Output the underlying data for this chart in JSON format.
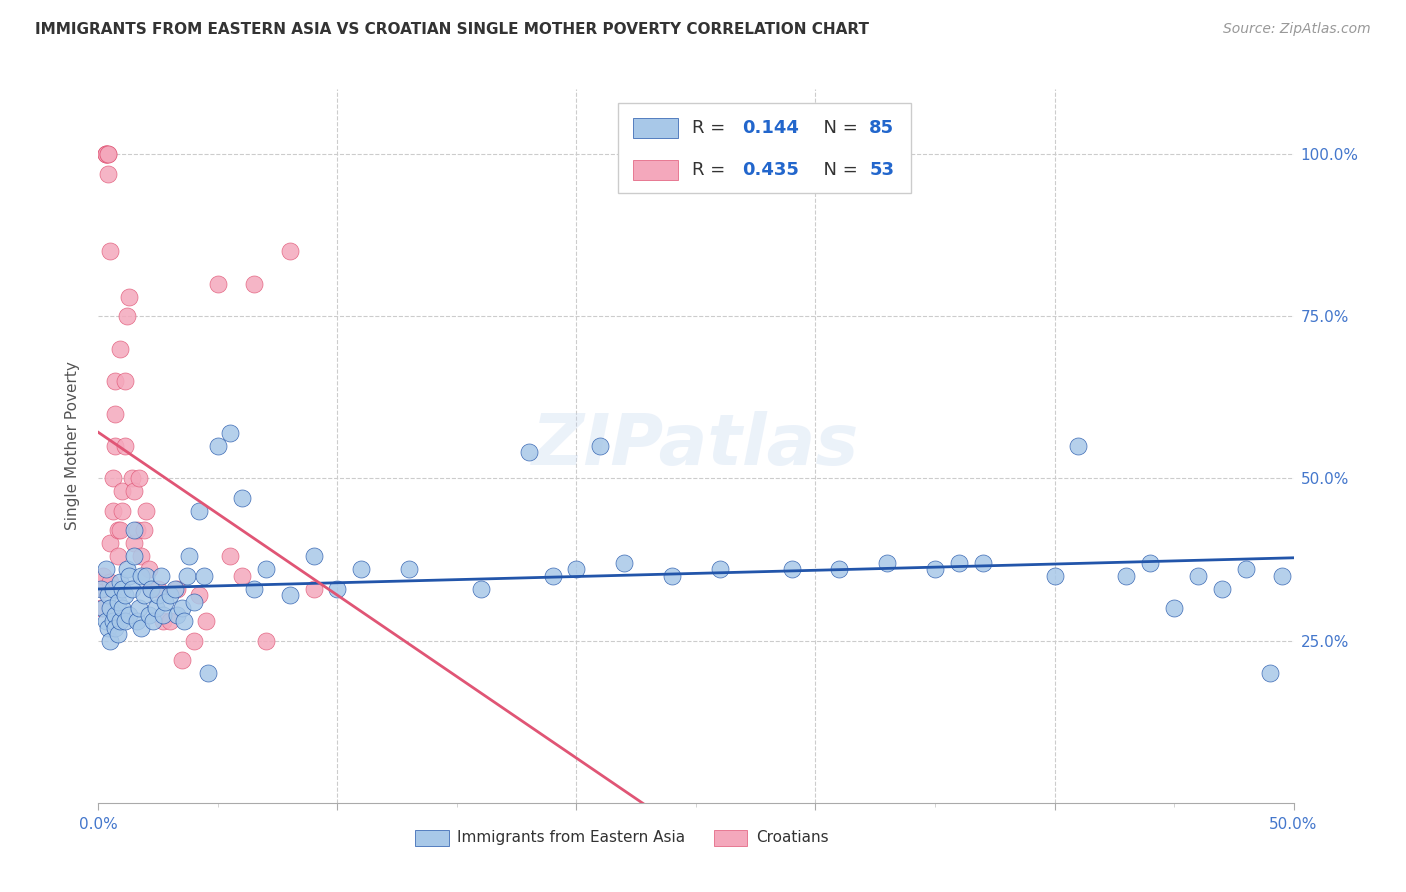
{
  "title": "IMMIGRANTS FROM EASTERN ASIA VS CROATIAN SINGLE MOTHER POVERTY CORRELATION CHART",
  "source": "Source: ZipAtlas.com",
  "ylabel": "Single Mother Poverty",
  "x_tick_labels": [
    "0.0%",
    "",
    "",
    "",
    "",
    "",
    "",
    "",
    "",
    "50.0%"
  ],
  "x_tick_values": [
    0.0,
    0.05,
    0.1,
    0.15,
    0.2,
    0.25,
    0.3,
    0.35,
    0.4,
    0.5
  ],
  "y_tick_labels": [
    "25.0%",
    "50.0%",
    "75.0%",
    "100.0%"
  ],
  "y_tick_values": [
    0.25,
    0.5,
    0.75,
    1.0
  ],
  "xlim": [
    0.0,
    0.5
  ],
  "ylim": [
    0.0,
    1.1
  ],
  "legend_label_blue": "Immigrants from Eastern Asia",
  "legend_label_pink": "Croatians",
  "R_blue": 0.144,
  "N_blue": 85,
  "R_pink": 0.435,
  "N_pink": 53,
  "blue_color": "#a8c8e8",
  "pink_color": "#f4a8bc",
  "blue_line_color": "#2255aa",
  "pink_line_color": "#e05575",
  "watermark": "ZIPatlas",
  "blue_x": [
    0.001,
    0.002,
    0.003,
    0.003,
    0.004,
    0.004,
    0.005,
    0.005,
    0.006,
    0.006,
    0.007,
    0.007,
    0.008,
    0.008,
    0.009,
    0.009,
    0.01,
    0.01,
    0.011,
    0.011,
    0.012,
    0.013,
    0.013,
    0.014,
    0.015,
    0.015,
    0.016,
    0.017,
    0.018,
    0.018,
    0.019,
    0.02,
    0.021,
    0.022,
    0.023,
    0.024,
    0.025,
    0.026,
    0.027,
    0.028,
    0.03,
    0.032,
    0.033,
    0.035,
    0.036,
    0.037,
    0.038,
    0.04,
    0.042,
    0.044,
    0.046,
    0.05,
    0.055,
    0.06,
    0.065,
    0.07,
    0.08,
    0.09,
    0.1,
    0.11,
    0.13,
    0.16,
    0.19,
    0.21,
    0.24,
    0.26,
    0.29,
    0.31,
    0.35,
    0.37,
    0.4,
    0.41,
    0.43,
    0.44,
    0.45,
    0.46,
    0.47,
    0.48,
    0.49,
    0.495,
    0.18,
    0.2,
    0.22,
    0.33,
    0.36
  ],
  "blue_y": [
    0.33,
    0.3,
    0.28,
    0.36,
    0.27,
    0.32,
    0.3,
    0.25,
    0.28,
    0.33,
    0.29,
    0.27,
    0.31,
    0.26,
    0.34,
    0.28,
    0.3,
    0.33,
    0.28,
    0.32,
    0.36,
    0.29,
    0.35,
    0.33,
    0.42,
    0.38,
    0.28,
    0.3,
    0.27,
    0.35,
    0.32,
    0.35,
    0.29,
    0.33,
    0.28,
    0.3,
    0.32,
    0.35,
    0.29,
    0.31,
    0.32,
    0.33,
    0.29,
    0.3,
    0.28,
    0.35,
    0.38,
    0.31,
    0.45,
    0.35,
    0.2,
    0.55,
    0.57,
    0.47,
    0.33,
    0.36,
    0.32,
    0.38,
    0.33,
    0.36,
    0.36,
    0.33,
    0.35,
    0.55,
    0.35,
    0.36,
    0.36,
    0.36,
    0.36,
    0.37,
    0.35,
    0.55,
    0.35,
    0.37,
    0.3,
    0.35,
    0.33,
    0.36,
    0.2,
    0.35,
    0.54,
    0.36,
    0.37,
    0.37,
    0.37
  ],
  "pink_x": [
    0.001,
    0.001,
    0.002,
    0.002,
    0.003,
    0.003,
    0.003,
    0.004,
    0.004,
    0.004,
    0.005,
    0.005,
    0.005,
    0.006,
    0.006,
    0.007,
    0.007,
    0.007,
    0.008,
    0.008,
    0.009,
    0.009,
    0.01,
    0.01,
    0.011,
    0.011,
    0.012,
    0.013,
    0.014,
    0.015,
    0.015,
    0.016,
    0.017,
    0.018,
    0.019,
    0.02,
    0.021,
    0.022,
    0.025,
    0.027,
    0.03,
    0.033,
    0.035,
    0.04,
    0.042,
    0.045,
    0.05,
    0.055,
    0.06,
    0.065,
    0.07,
    0.08,
    0.09
  ],
  "pink_y": [
    0.34,
    0.3,
    0.33,
    0.35,
    1.0,
    1.0,
    1.0,
    1.0,
    1.0,
    0.97,
    0.34,
    0.4,
    0.85,
    0.45,
    0.5,
    0.55,
    0.6,
    0.65,
    0.42,
    0.38,
    0.7,
    0.42,
    0.48,
    0.45,
    0.65,
    0.55,
    0.75,
    0.78,
    0.5,
    0.48,
    0.4,
    0.42,
    0.5,
    0.38,
    0.42,
    0.45,
    0.36,
    0.33,
    0.33,
    0.28,
    0.28,
    0.33,
    0.22,
    0.25,
    0.32,
    0.28,
    0.8,
    0.38,
    0.35,
    0.8,
    0.25,
    0.85,
    0.33
  ]
}
